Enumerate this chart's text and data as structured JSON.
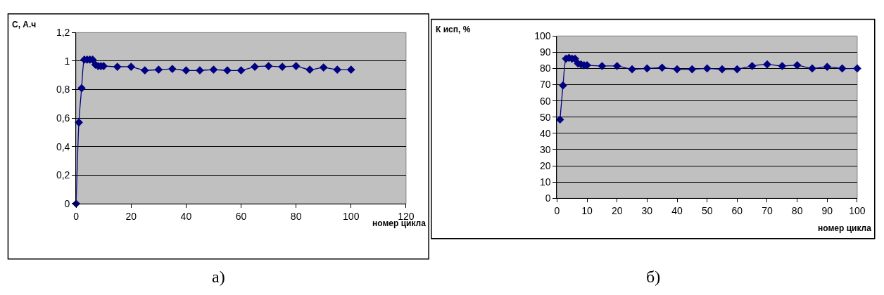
{
  "chart_data": [
    {
      "type": "line",
      "ylabel": "С, А.ч",
      "xlabel": "номер цикла",
      "annotations": [
        "а)"
      ],
      "x": [
        0,
        1,
        2,
        3,
        4,
        5,
        6,
        7,
        8,
        9,
        10,
        15,
        20,
        25,
        30,
        35,
        40,
        45,
        50,
        55,
        60,
        65,
        70,
        75,
        80,
        85,
        90,
        95,
        100
      ],
      "series": [
        {
          "color": "#000080",
          "values": [
            0,
            0.57,
            0.81,
            1.01,
            1.01,
            1.01,
            1.01,
            0.975,
            0.965,
            0.965,
            0.965,
            0.96,
            0.96,
            0.935,
            0.94,
            0.945,
            0.935,
            0.935,
            0.94,
            0.935,
            0.935,
            0.96,
            0.965,
            0.96,
            0.965,
            0.94,
            0.955,
            0.94,
            0.94
          ]
        }
      ],
      "xlim": [
        0,
        120
      ],
      "xticks": [
        0,
        20,
        40,
        60,
        80,
        100,
        120
      ],
      "ylim": [
        0,
        1.2
      ],
      "yticks": [
        0,
        {
          "value": 0.2,
          "label": "0,2"
        },
        {
          "value": 0.4,
          "label": "0,4"
        },
        {
          "value": 0.6,
          "label": "0,6"
        },
        {
          "value": 0.8,
          "label": "0,8"
        },
        1,
        {
          "value": 1.2,
          "label": "1,2"
        }
      ],
      "grid": "y",
      "marker": "diamond",
      "line_style": "solid"
    },
    {
      "type": "line",
      "ylabel": "К исп, %",
      "xlabel": "номер цикла",
      "annotations": [
        "б)"
      ],
      "x": [
        1,
        2,
        3,
        4,
        5,
        6,
        7,
        8,
        9,
        10,
        15,
        20,
        25,
        30,
        35,
        40,
        45,
        50,
        55,
        60,
        65,
        70,
        75,
        80,
        85,
        90,
        95,
        100
      ],
      "series": [
        {
          "color": "#000080",
          "values": [
            48.5,
            69.5,
            86,
            86.5,
            86,
            86,
            83,
            82.5,
            82,
            82,
            81.5,
            81.5,
            79.5,
            80,
            80.5,
            79.5,
            79.5,
            80,
            79.5,
            79.5,
            81.5,
            82.5,
            81.5,
            82,
            80,
            81,
            80,
            80
          ]
        }
      ],
      "xlim": [
        0,
        100
      ],
      "xticks": [
        0,
        10,
        20,
        30,
        40,
        50,
        60,
        70,
        80,
        90,
        100
      ],
      "ylim": [
        0,
        100
      ],
      "yticks": [
        0,
        10,
        20,
        30,
        40,
        50,
        60,
        70,
        80,
        90,
        100
      ],
      "grid": "y",
      "marker": "diamond",
      "line_style": "solid"
    }
  ]
}
